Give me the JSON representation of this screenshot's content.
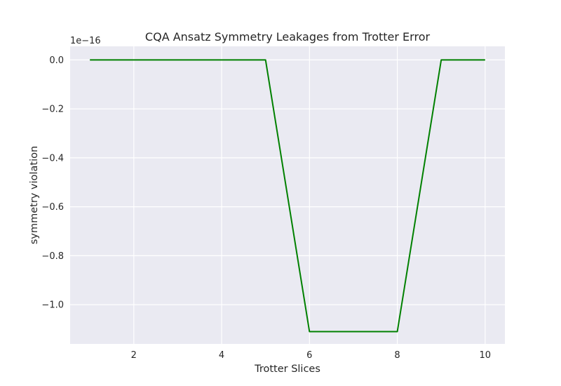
{
  "chart_data": {
    "type": "line",
    "title": "CQA Ansatz Symmetry Leakages from Trotter Error",
    "xlabel": "Trotter Slices",
    "ylabel": "symmetry violation",
    "y_offset_text": "1e−16",
    "xlim": [
      0.55,
      10.45
    ],
    "ylim": [
      -1.1602,
      0.0555
    ],
    "x_ticks": [
      2,
      4,
      6,
      8,
      10
    ],
    "x_tick_labels": [
      "2",
      "4",
      "6",
      "8",
      "10"
    ],
    "y_ticks": [
      0.0,
      -0.2,
      -0.4,
      -0.6,
      -0.8,
      -1.0
    ],
    "y_tick_labels": [
      "0.0",
      "−0.2",
      "−0.4",
      "−0.6",
      "−0.8",
      "−1.0"
    ],
    "grid": true,
    "background": "#eaeaf2",
    "grid_color": "#ffffff",
    "series": [
      {
        "color": "#008000",
        "x": [
          1,
          2,
          3,
          4,
          5,
          6,
          7,
          8,
          9,
          10
        ],
        "y": [
          0.0,
          0.0,
          0.0,
          0.0,
          0.0,
          -1.11,
          -1.11,
          -1.11,
          0.0,
          0.0
        ]
      }
    ]
  }
}
